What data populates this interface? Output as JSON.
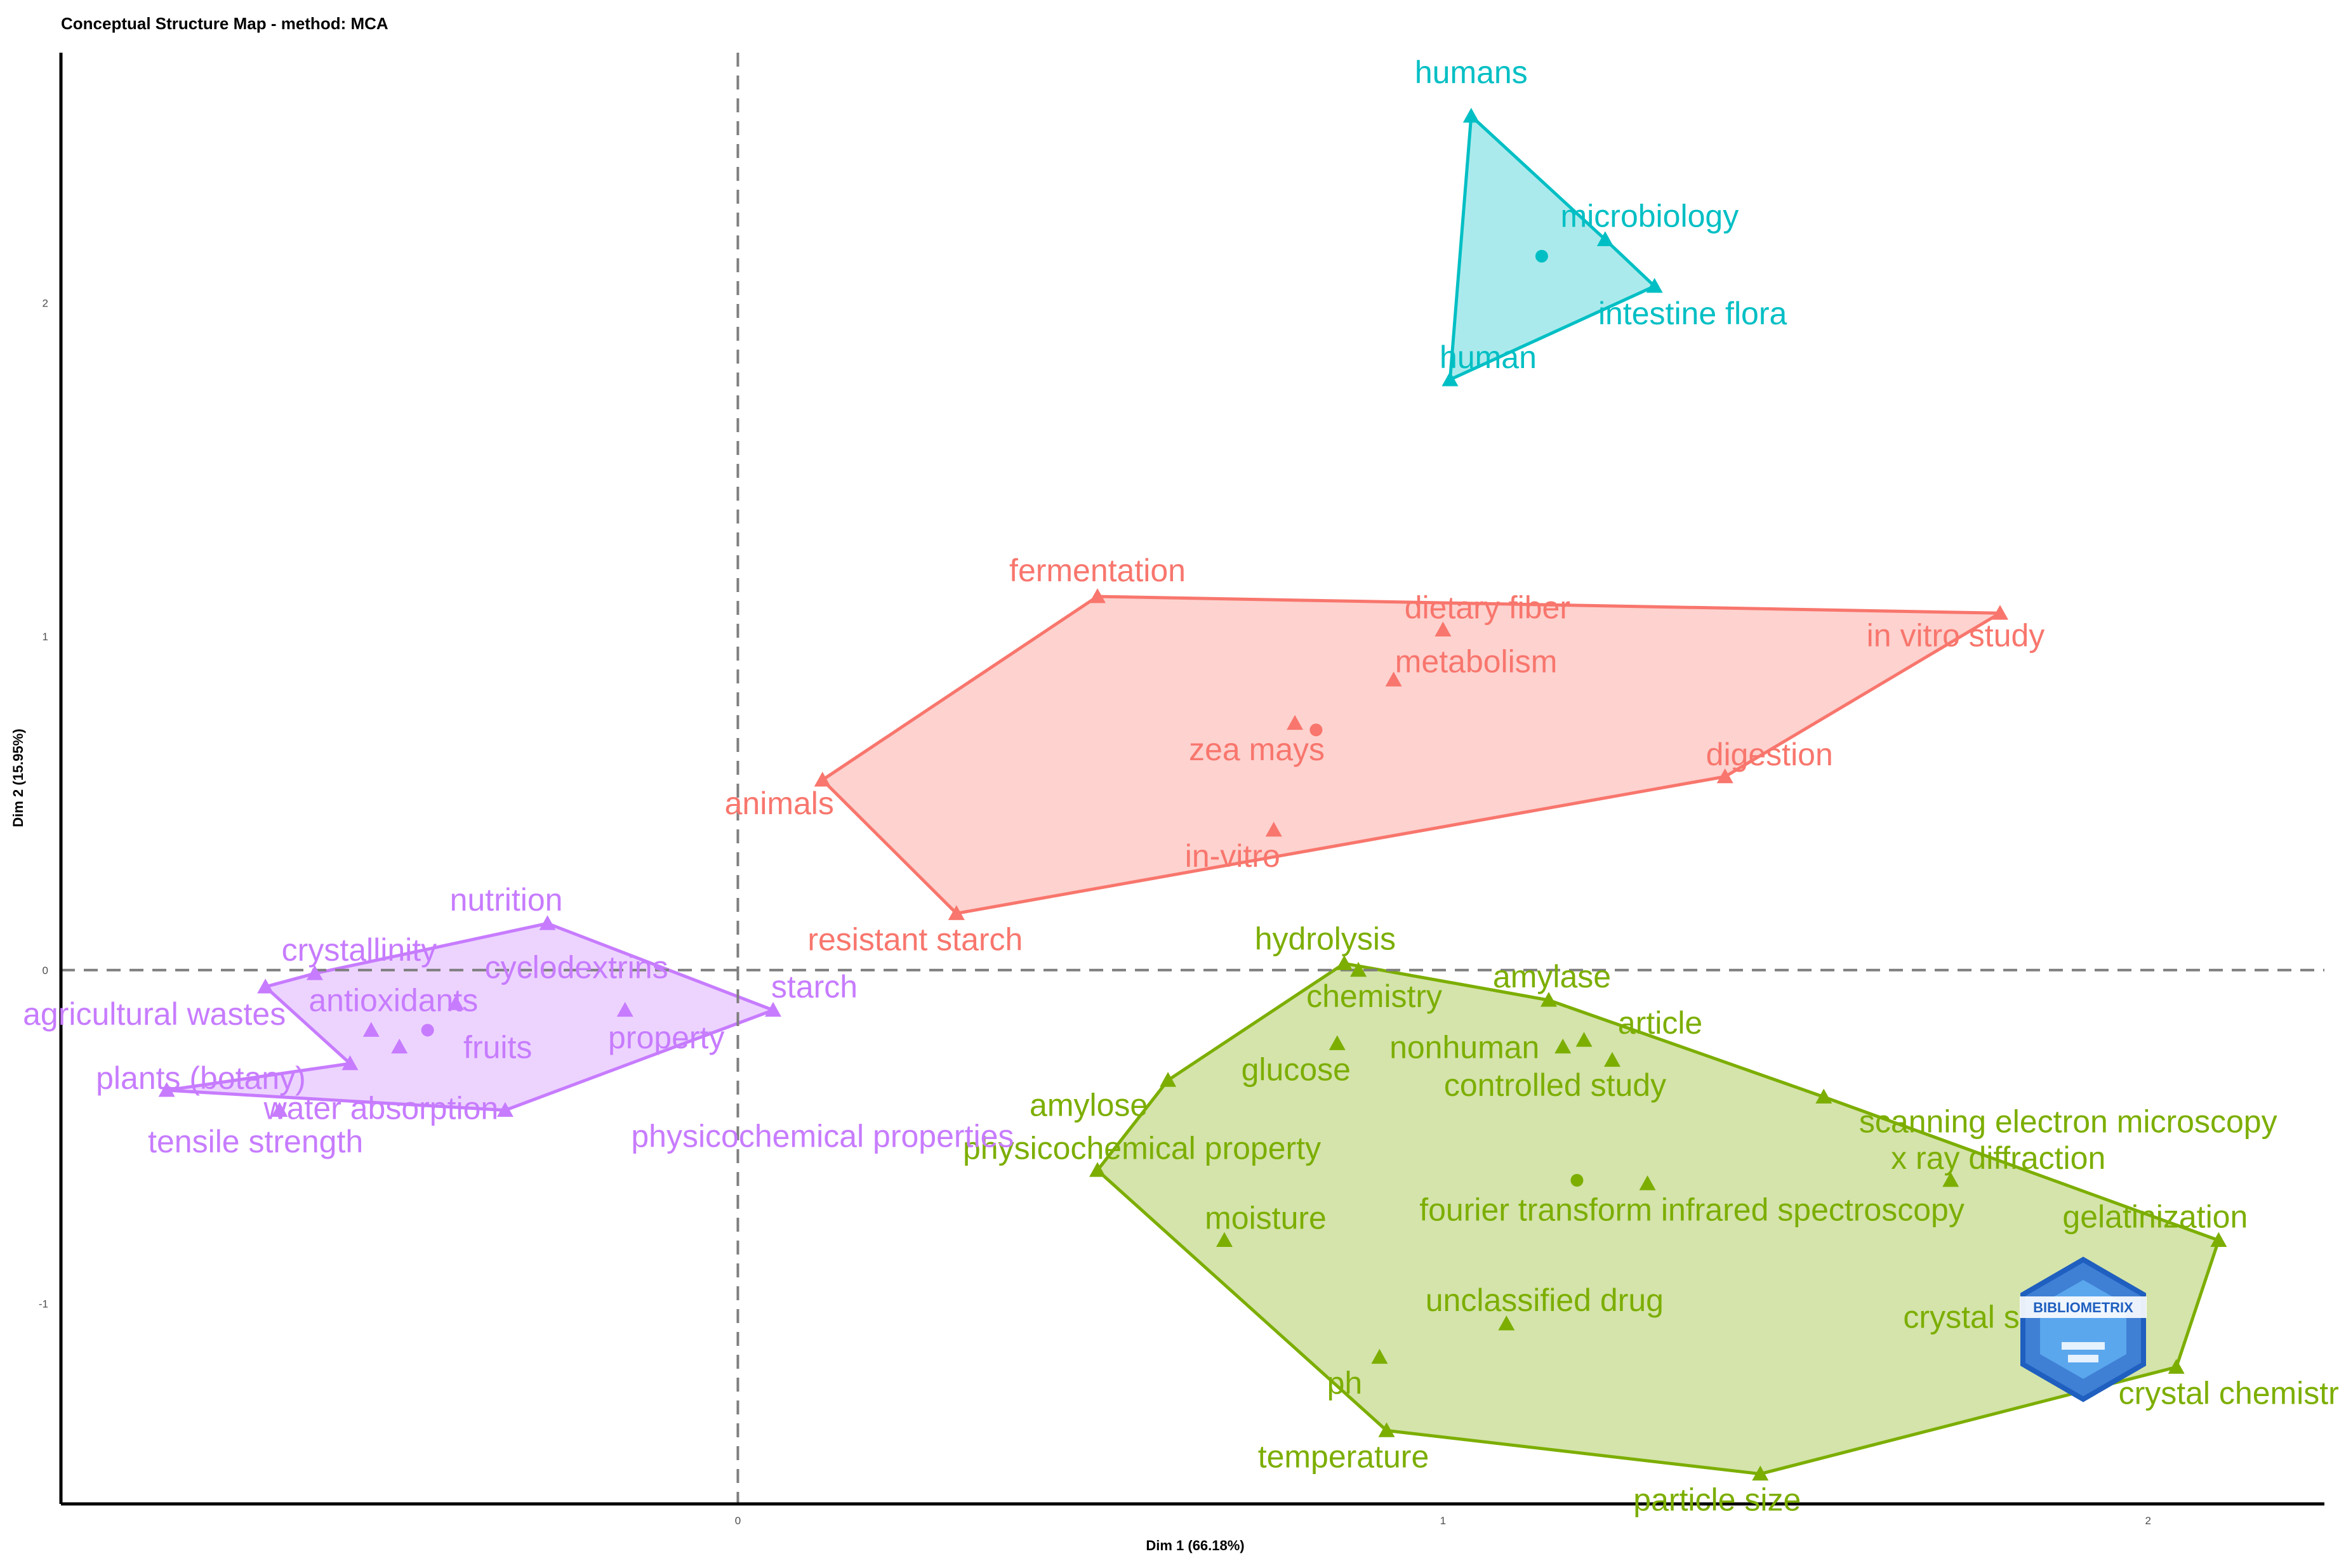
{
  "chart_data": {
    "type": "scatter",
    "title": "Conceptual Structure Map - method: MCA",
    "xlabel": "Dim 1 (66.18%)",
    "ylabel": "Dim 2 (15.95%)",
    "xlim": [
      -0.96,
      2.25
    ],
    "ylim": [
      -1.6,
      2.75
    ],
    "x_ticks": [
      0,
      1,
      2
    ],
    "y_ticks": [
      -1,
      0,
      1,
      2
    ],
    "reference_lines": {
      "x": 0,
      "y": 0,
      "style": "dashed"
    },
    "grid": false,
    "legend": "none",
    "watermark_text": "BIBLIOMETRIX",
    "clusters": [
      {
        "id": 1,
        "color": "#F8766D",
        "fill": "#F8766D",
        "centroid": [
          0.82,
          0.72
        ],
        "hull": [
          "animals",
          "fermentation",
          "in vitro study",
          "digestion",
          "resistant starch"
        ],
        "points": [
          {
            "label": "fermentation",
            "x": 0.51,
            "y": 1.12
          },
          {
            "label": "dietary fiber",
            "x": 1.0,
            "y": 1.02
          },
          {
            "label": "metabolism",
            "x": 0.93,
            "y": 0.87
          },
          {
            "label": "in vitro study",
            "x": 1.79,
            "y": 1.07
          },
          {
            "label": "zea mays",
            "x": 0.79,
            "y": 0.74
          },
          {
            "label": "digestion",
            "x": 1.4,
            "y": 0.58
          },
          {
            "label": "animals",
            "x": 0.12,
            "y": 0.57
          },
          {
            "label": "in-vitro",
            "x": 0.76,
            "y": 0.42
          },
          {
            "label": "resistant starch",
            "x": 0.31,
            "y": 0.17
          }
        ]
      },
      {
        "id": 2,
        "color": "#7CAE00",
        "fill": "#7CAE00",
        "centroid": [
          1.19,
          -0.63
        ],
        "hull": [
          "hydrolysis",
          "amylase",
          "scanning electron microscopy",
          "gelatinization",
          "crystal chemistry",
          "particle size",
          "temperature",
          "physicochemical property",
          "amylose"
        ],
        "points": [
          {
            "label": "hydrolysis",
            "x": 0.86,
            "y": 0.02
          },
          {
            "label": "chemistry",
            "x": 0.88,
            "y": 0.0
          },
          {
            "label": "amylase",
            "x": 1.15,
            "y": -0.09
          },
          {
            "label": "article",
            "x": 1.2,
            "y": -0.21
          },
          {
            "label": "nonhuman",
            "x": 1.17,
            "y": -0.23
          },
          {
            "label": "glucose",
            "x": 0.85,
            "y": -0.22
          },
          {
            "label": "controlled study",
            "x": 1.24,
            "y": -0.27
          },
          {
            "label": "amylose",
            "x": 0.61,
            "y": -0.33
          },
          {
            "label": "scanning electron microscopy",
            "x": 1.54,
            "y": -0.38
          },
          {
            "label": "physicochemical property",
            "x": 0.51,
            "y": -0.6
          },
          {
            "label": "x ray diffraction",
            "x": 1.72,
            "y": -0.63
          },
          {
            "label": "fourier transform infrared spectroscopy",
            "x": 1.29,
            "y": -0.64
          },
          {
            "label": "moisture",
            "x": 0.69,
            "y": -0.81
          },
          {
            "label": "gelatinization",
            "x": 2.1,
            "y": -0.81
          },
          {
            "label": "unclassified drug",
            "x": 1.09,
            "y": -1.06
          },
          {
            "label": "crystal structure",
            "x": 1.87,
            "y": -1.11
          },
          {
            "label": "ph",
            "x": 0.91,
            "y": -1.16
          },
          {
            "label": "crystal chemistry",
            "x": 2.04,
            "y": -1.19
          },
          {
            "label": "temperature",
            "x": 0.92,
            "y": -1.38
          },
          {
            "label": "particle size",
            "x": 1.45,
            "y": -1.51
          }
        ]
      },
      {
        "id": 3,
        "color": "#00BFC4",
        "fill": "#00BFC4",
        "centroid": [
          1.14,
          2.14
        ],
        "hull": [
          "humans",
          "microbiology",
          "intestine flora",
          "human"
        ],
        "points": [
          {
            "label": "humans",
            "x": 1.04,
            "y": 2.56
          },
          {
            "label": "microbiology",
            "x": 1.23,
            "y": 2.19
          },
          {
            "label": "intestine flora",
            "x": 1.3,
            "y": 2.05
          },
          {
            "label": "human",
            "x": 1.01,
            "y": 1.77
          }
        ]
      },
      {
        "id": 4,
        "color": "#C77CFF",
        "fill": "#C77CFF",
        "centroid": [
          -0.44,
          -0.18
        ],
        "hull": [
          "nutrition",
          "starch",
          "physicochemical properties",
          "tensile strength",
          "plants (botany)",
          "agricultural wastes",
          "crystallinity"
        ],
        "points": [
          {
            "label": "nutrition",
            "x": -0.27,
            "y": 0.14
          },
          {
            "label": "crystallinity",
            "x": -0.6,
            "y": -0.01
          },
          {
            "label": "cyclodextrins",
            "x": -0.4,
            "y": -0.1
          },
          {
            "label": "agricultural wastes",
            "x": -0.67,
            "y": -0.05
          },
          {
            "label": "antioxidants",
            "x": -0.52,
            "y": -0.18
          },
          {
            "label": "starch",
            "x": 0.05,
            "y": -0.12
          },
          {
            "label": "property",
            "x": -0.16,
            "y": -0.12
          },
          {
            "label": "fruits",
            "x": -0.48,
            "y": -0.23
          },
          {
            "label": "plants (botany)",
            "x": -0.55,
            "y": -0.28
          },
          {
            "label": "water absorption",
            "x": -0.65,
            "y": -0.42
          },
          {
            "label": "tensile strength",
            "x": -0.81,
            "y": -0.36
          },
          {
            "label": "physicochemical properties",
            "x": -0.33,
            "y": -0.42
          }
        ]
      }
    ]
  }
}
